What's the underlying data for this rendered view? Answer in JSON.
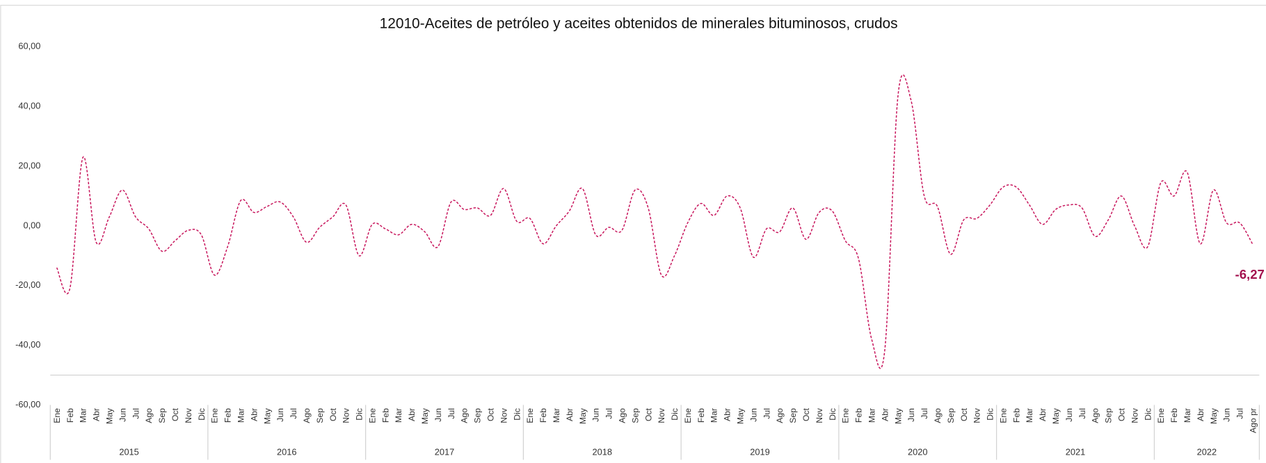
{
  "chart_data": {
    "type": "line",
    "title": "12010-Aceites de petróleo y aceites obtenidos de minerales bituminosos, crudos",
    "years": [
      "2015",
      "2016",
      "2017",
      "2018",
      "2019",
      "2020",
      "2021",
      "2022"
    ],
    "categories": [
      "Ene",
      "Feb",
      "Mar",
      "Abr",
      "May",
      "Jun",
      "Jul",
      "Ago",
      "Sep",
      "Oct",
      "Nov",
      "Dic",
      "Ene",
      "Feb",
      "Mar",
      "Abr",
      "May",
      "Jun",
      "Jul",
      "Ago",
      "Sep",
      "Oct",
      "Nov",
      "Dic",
      "Ene",
      "Feb",
      "Mar",
      "Abr",
      "May",
      "Jun",
      "Jul",
      "Ago",
      "Sep",
      "Oct",
      "Nov",
      "Dic",
      "Ene",
      "Feb",
      "Mar",
      "Abr",
      "May",
      "Jun",
      "Jul",
      "Ago",
      "Sep",
      "Oct",
      "Nov",
      "Dic",
      "Ene",
      "Feb",
      "Mar",
      "Abr",
      "May",
      "Jun",
      "Jul",
      "Ago",
      "Sep",
      "Oct",
      "Nov",
      "Dic",
      "Ene",
      "Feb",
      "Mar",
      "Abr",
      "May",
      "Jun",
      "Jul",
      "Ago",
      "Sep",
      "Oct",
      "Nov",
      "Dic",
      "Ene",
      "Feb",
      "Mar",
      "Abr",
      "May",
      "Jun",
      "Jul",
      "Ago",
      "Sep",
      "Oct",
      "Nov",
      "Dic",
      "Ene",
      "Feb",
      "Mar",
      "Abr",
      "May",
      "Jun",
      "Jul",
      "Ago pr"
    ],
    "series": [
      {
        "color": "#c8175d",
        "values": [
          -14,
          -21,
          23,
          -5.5,
          3,
          12,
          3,
          -1,
          -8.5,
          -5,
          -1.5,
          -3,
          -16.5,
          -7,
          8.5,
          4.5,
          6.5,
          8,
          3,
          -5.5,
          -0.5,
          3,
          7,
          -10,
          0.5,
          -1,
          -3,
          0.5,
          -2,
          -7,
          8,
          5.5,
          6,
          3.5,
          12.5,
          1.5,
          2.5,
          -6,
          0,
          5,
          12.5,
          -3,
          -0.5,
          -1.5,
          12,
          6,
          -16.5,
          -10,
          1,
          7.5,
          3.5,
          10,
          6,
          -10.5,
          -1,
          -2,
          6,
          -4.5,
          4.5,
          5,
          -5,
          -11,
          -38,
          -41.5,
          43.5,
          42,
          10,
          6.5,
          -9.5,
          2,
          2.5,
          7,
          13,
          13,
          7,
          0.5,
          5.5,
          7,
          6,
          -3.5,
          2,
          10,
          0,
          -7,
          14.5,
          10,
          18,
          -6,
          12,
          1,
          1,
          -6.27
        ],
        "value_labels": {
          "91": "-6,27"
        }
      }
    ],
    "ylim": [
      -60,
      60
    ],
    "yticks": [
      {
        "value": -60,
        "label": "-60,00"
      },
      {
        "value": -40,
        "label": "-40,00"
      },
      {
        "value": -20,
        "label": "-20,00"
      },
      {
        "value": 0,
        "label": "0,00"
      },
      {
        "value": 20,
        "label": "20,00"
      },
      {
        "value": 40,
        "label": "40,00"
      },
      {
        "value": 60,
        "label": "60,00"
      }
    ]
  }
}
